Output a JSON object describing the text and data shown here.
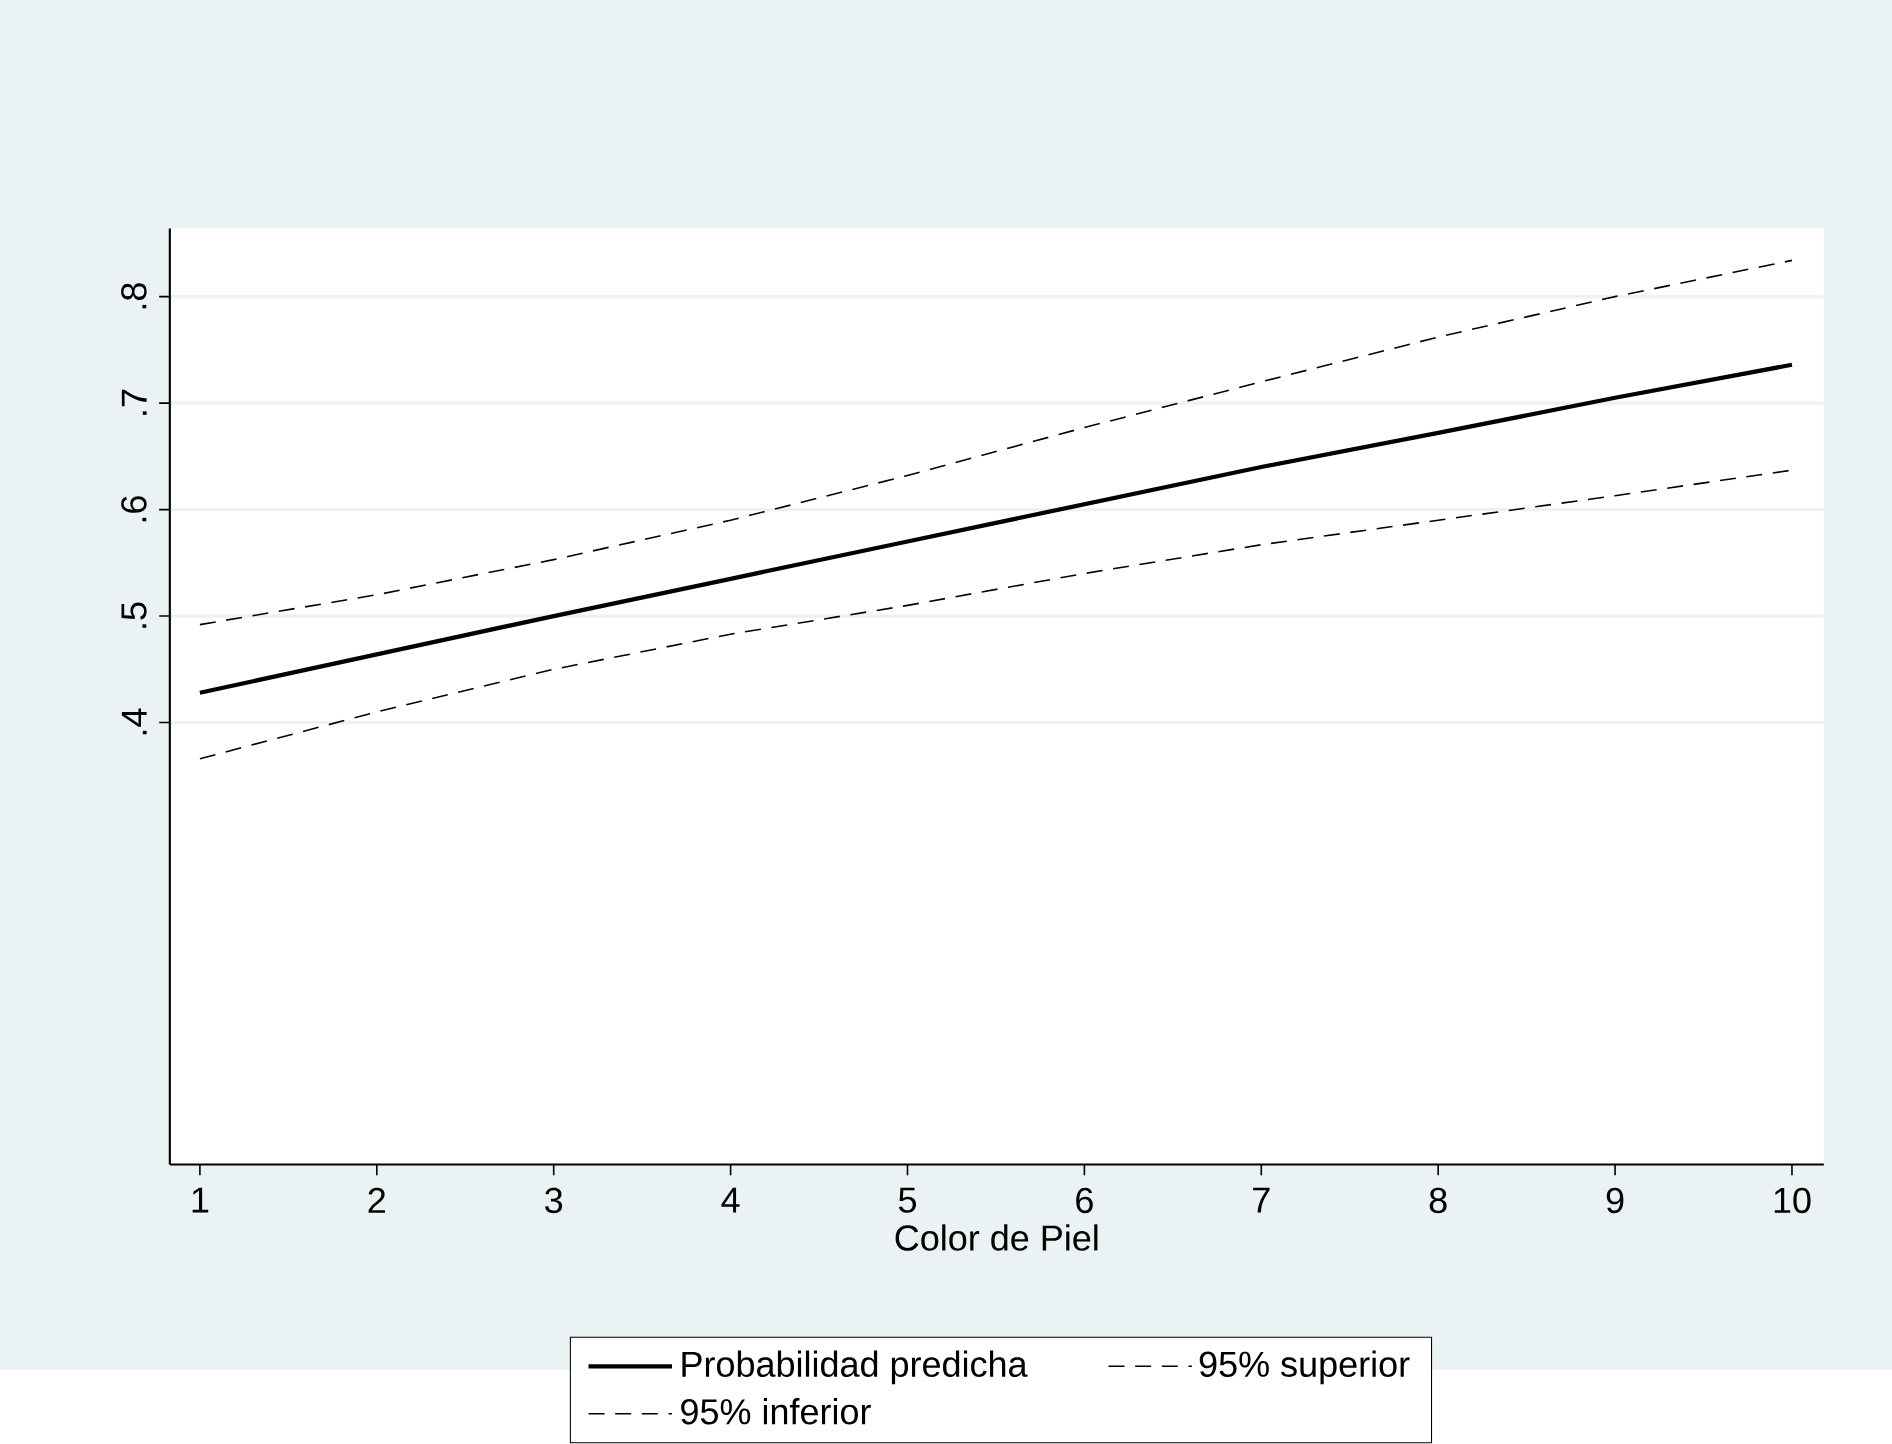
{
  "chart_data": {
    "type": "line",
    "xlabel": "Color de Piel",
    "x": [
      1,
      2,
      3,
      4,
      5,
      6,
      7,
      8,
      9,
      10
    ],
    "xlim": [
      0.83,
      10.18
    ],
    "xticks": [
      1,
      2,
      3,
      4,
      5,
      6,
      7,
      8,
      9,
      10
    ],
    "ylim": [
      -0.015,
      0.864
    ],
    "yticks": [
      {
        "value": 0.4,
        "label": ".4"
      },
      {
        "value": 0.5,
        "label": ".5"
      },
      {
        "value": 0.6,
        "label": ".6"
      },
      {
        "value": 0.7,
        "label": ".7"
      },
      {
        "value": 0.8,
        "label": ".8"
      }
    ],
    "grid": "y",
    "legend": "bottom",
    "marker": "none",
    "series": [
      {
        "name": "Probabilidad predicha",
        "color": "#000000",
        "line_style": "solid",
        "values": [
          0.428,
          0.464,
          0.5,
          0.535,
          0.57,
          0.605,
          0.64,
          0.672,
          0.705,
          0.736
        ]
      },
      {
        "name": "95% superior",
        "color": "#000000",
        "line_style": "dashed",
        "values": [
          0.492,
          0.52,
          0.553,
          0.59,
          0.632,
          0.677,
          0.72,
          0.762,
          0.8,
          0.834
        ]
      },
      {
        "name": "95% inferior",
        "color": "#000000",
        "line_style": "dashed",
        "values": [
          0.366,
          0.41,
          0.45,
          0.483,
          0.51,
          0.54,
          0.567,
          0.59,
          0.613,
          0.637
        ]
      }
    ]
  }
}
